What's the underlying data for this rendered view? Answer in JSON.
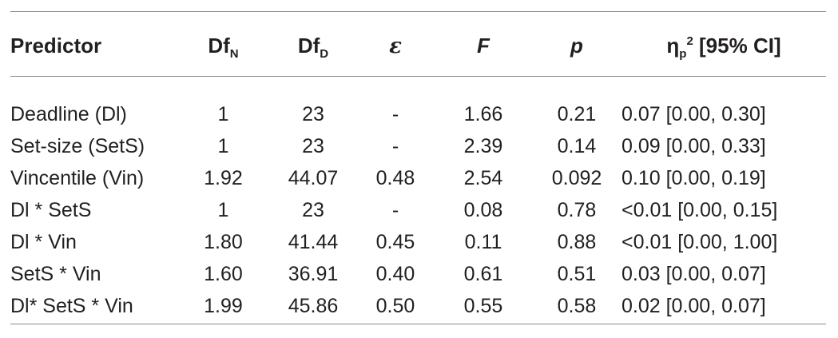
{
  "header": {
    "predictor": "Predictor",
    "dfn_base": "Df",
    "dfn_sub": "N",
    "dfd_base": "Df",
    "dfd_sub": "D",
    "epsilon": "ε",
    "f": "F",
    "p": "p",
    "eta_base": "η",
    "eta_sub": "p",
    "eta_sup": "2",
    "eta_rest": " [95% CI]"
  },
  "rows": [
    {
      "predictor": "Deadline (Dl)",
      "dfn": "1",
      "dfd": "23",
      "eps": "-",
      "f": "1.66",
      "p": "0.21",
      "eta": "0.07 [0.00, 0.30]"
    },
    {
      "predictor": "Set-size (SetS)",
      "dfn": "1",
      "dfd": "23",
      "eps": "-",
      "f": "2.39",
      "p": "0.14",
      "eta": "0.09 [0.00, 0.33]"
    },
    {
      "predictor": "Vincentile (Vin)",
      "dfn": "1.92",
      "dfd": "44.07",
      "eps": "0.48",
      "f": "2.54",
      "p": "0.092",
      "eta": "0.10 [0.00, 0.19]"
    },
    {
      "predictor": "Dl * SetS",
      "dfn": "1",
      "dfd": "23",
      "eps": "-",
      "f": "0.08",
      "p": "0.78",
      "eta": "<0.01 [0.00, 0.15]"
    },
    {
      "predictor": "Dl * Vin",
      "dfn": "1.80",
      "dfd": "41.44",
      "eps": "0.45",
      "f": "0.11",
      "p": "0.88",
      "eta": "<0.01 [0.00, 1.00]"
    },
    {
      "predictor": "SetS * Vin",
      "dfn": "1.60",
      "dfd": "36.91",
      "eps": "0.40",
      "f": "0.61",
      "p": "0.51",
      "eta": "0.03 [0.00, 0.07]"
    },
    {
      "predictor": "Dl* SetS * Vin",
      "dfn": "1.99",
      "dfd": "45.86",
      "eps": "0.50",
      "f": "0.55",
      "p": "0.58",
      "eta": "0.02 [0.00, 0.07]"
    }
  ]
}
